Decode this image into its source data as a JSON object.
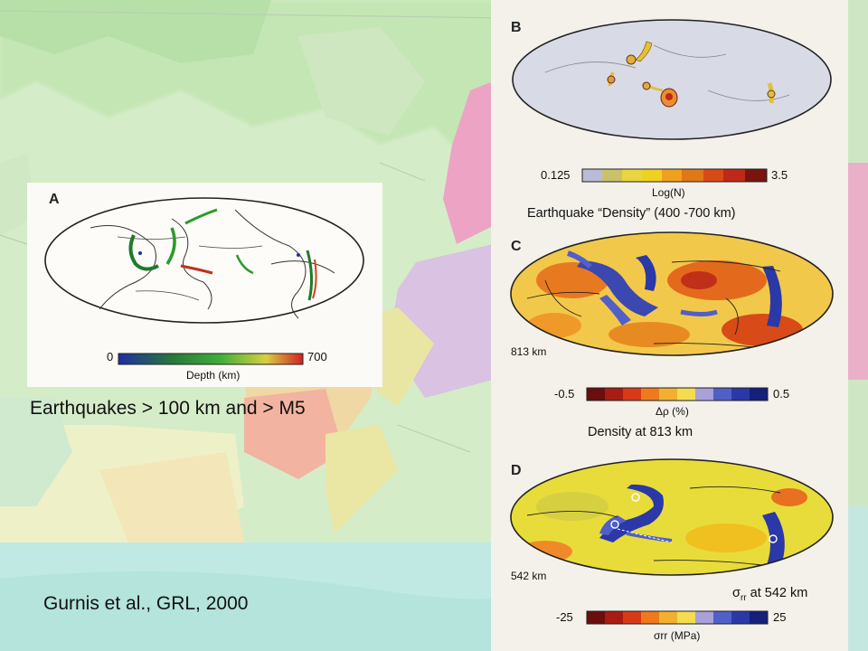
{
  "captions": {
    "panel_a": "Earthquakes > 100 km and > M5",
    "citation": "Gurnis et al., GRL, 2000",
    "panel_b": "Earthquake “Density” (400 -700 km)",
    "panel_c": "Density at 813 km",
    "panel_d_symbol": "σ",
    "panel_d_sub": "rr",
    "panel_d_rest": "at 542 km"
  },
  "panel_a": {
    "label": "A",
    "scale_min": "0",
    "scale_max": "700",
    "scale_unit": "Depth (km)"
  },
  "panel_b": {
    "label": "B",
    "scale_min": "0.125",
    "scale_max": "3.5",
    "scale_unit": "Log(N)"
  },
  "panel_c": {
    "label": "C",
    "depth": "813 km",
    "scale_min": "-0.5",
    "scale_max": "0.5",
    "scale_unit": "Δρ (%)"
  },
  "panel_d": {
    "label": "D",
    "depth": "542 km",
    "scale_min": "-25",
    "scale_max": "25",
    "scale_unit": "σrr (MPa)"
  },
  "colors": {
    "depth_scale": [
      "#1e2fa0",
      "#2a7a3a",
      "#3fae3a",
      "#d8d040",
      "#d42020"
    ],
    "log_scale": [
      "#b9bcd8",
      "#c9c26a",
      "#e8d640",
      "#f0d020",
      "#f0a020",
      "#e07818",
      "#d84a18",
      "#c02818",
      "#7a1410"
    ],
    "diverging_scale": [
      "#6a0e0e",
      "#a81c14",
      "#d83a18",
      "#ee7a1c",
      "#f2b030",
      "#f4dc50",
      "#a8a0d8",
      "#5060c8",
      "#2a38a8",
      "#14207a"
    ]
  }
}
